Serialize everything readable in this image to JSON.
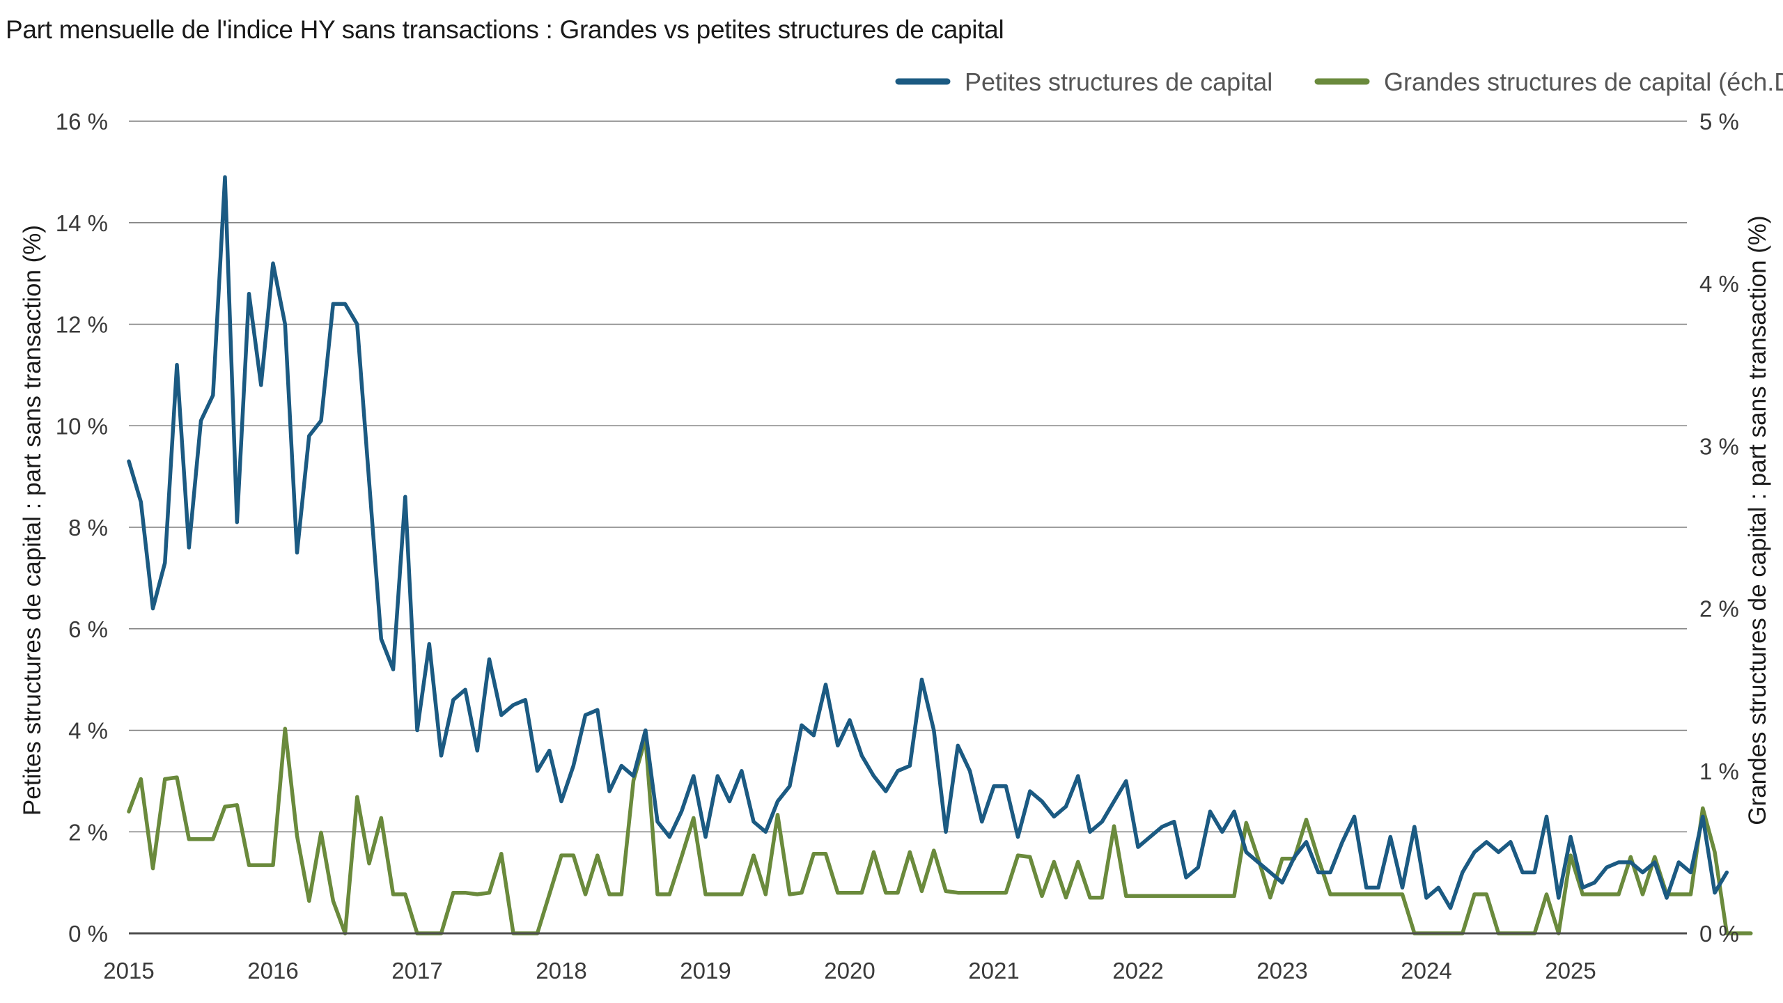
{
  "chart_data": {
    "type": "line",
    "title": "Part mensuelle de l'indice HY sans transactions : Grandes vs petites structures de capital",
    "ylabel_left": "Petites structures de capital : part sans transaction (%)",
    "ylabel_right": "Grandes structures de capital : part sans transaction (%)",
    "x_start": "2015-01",
    "x_ticks": [
      "2015",
      "2016",
      "2017",
      "2018",
      "2019",
      "2020",
      "2021",
      "2022",
      "2023",
      "2024",
      "2025"
    ],
    "ylim_left": [
      0,
      16
    ],
    "yticks_left": [
      "0 %",
      "2 %",
      "4 %",
      "6 %",
      "8 %",
      "10 %",
      "12 %",
      "14 %",
      "16 %"
    ],
    "ylim_right": [
      0,
      5
    ],
    "yticks_right": [
      "0 %",
      "1 %",
      "2 %",
      "3 %",
      "4 %",
      "5 %"
    ],
    "grid": true,
    "legend_position": "top-right",
    "colors": {
      "small": "#1b5a82",
      "large": "#6a8a3c",
      "grid": "#7f7f7f",
      "axis": "#4d4d4d"
    },
    "series": [
      {
        "name": "Petites structures de capital",
        "axis": "left",
        "values": [
          9.3,
          8.5,
          6.4,
          7.3,
          11.2,
          7.6,
          10.1,
          10.6,
          14.9,
          8.1,
          12.6,
          10.8,
          13.2,
          12.0,
          7.5,
          9.8,
          10.1,
          12.4,
          12.4,
          12.0,
          8.9,
          5.8,
          5.2,
          8.6,
          4.0,
          5.7,
          3.5,
          4.6,
          4.8,
          3.6,
          5.4,
          4.3,
          4.5,
          4.6,
          3.2,
          3.6,
          2.6,
          3.3,
          4.3,
          4.4,
          2.8,
          3.3,
          3.1,
          4.0,
          2.2,
          1.9,
          2.4,
          3.1,
          1.9,
          3.1,
          2.6,
          3.2,
          2.2,
          2.0,
          2.6,
          2.9,
          4.1,
          3.9,
          4.9,
          3.7,
          4.2,
          3.5,
          3.1,
          2.8,
          3.2,
          3.3,
          5.0,
          4.0,
          2.0,
          3.7,
          3.2,
          2.2,
          2.9,
          2.9,
          1.9,
          2.8,
          2.6,
          2.3,
          2.5,
          3.1,
          2.0,
          2.2,
          2.6,
          3.0,
          1.7,
          1.9,
          2.1,
          2.2,
          1.1,
          1.3,
          2.4,
          2.0,
          2.4,
          1.6,
          1.4,
          1.2,
          1.0,
          1.5,
          1.8,
          1.2,
          1.2,
          1.8,
          2.3,
          0.9,
          0.9,
          1.9,
          0.9,
          2.1,
          0.7,
          0.9,
          0.5,
          1.2,
          1.6,
          1.8,
          1.6,
          1.8,
          1.2,
          1.2,
          2.3,
          0.7,
          1.9,
          0.9,
          1.0,
          1.3,
          1.4,
          1.4,
          1.2,
          1.4,
          0.7,
          1.4,
          1.2,
          2.3,
          0.8,
          1.2
        ]
      },
      {
        "name": "Grandes structures de capital (éch.D)",
        "axis": "right",
        "values": [
          0.75,
          0.95,
          0.4,
          0.95,
          0.96,
          0.58,
          0.58,
          0.58,
          0.78,
          0.79,
          0.42,
          0.42,
          0.42,
          1.26,
          0.6,
          0.2,
          0.62,
          0.2,
          0.0,
          0.84,
          0.43,
          0.71,
          0.24,
          0.24,
          0.0,
          0.0,
          0.0,
          0.25,
          0.25,
          0.24,
          0.25,
          0.49,
          0.0,
          0.0,
          0.0,
          0.24,
          0.48,
          0.48,
          0.24,
          0.48,
          0.24,
          0.24,
          0.94,
          1.2,
          0.24,
          0.24,
          0.47,
          0.71,
          0.24,
          0.24,
          0.24,
          0.24,
          0.48,
          0.24,
          0.73,
          0.24,
          0.25,
          0.49,
          0.49,
          0.25,
          0.25,
          0.25,
          0.5,
          0.25,
          0.25,
          0.5,
          0.26,
          0.51,
          0.26,
          0.25,
          0.25,
          0.25,
          0.25,
          0.25,
          0.48,
          0.47,
          0.23,
          0.44,
          0.22,
          0.44,
          0.22,
          0.22,
          0.66,
          0.23,
          0.23,
          0.23,
          0.23,
          0.23,
          0.23,
          0.23,
          0.23,
          0.23,
          0.23,
          0.68,
          0.46,
          0.22,
          0.46,
          0.46,
          0.7,
          0.46,
          0.24,
          0.24,
          0.24,
          0.24,
          0.24,
          0.24,
          0.24,
          0.0,
          0.0,
          0.0,
          0.0,
          0.0,
          0.24,
          0.24,
          0.0,
          0.0,
          0.0,
          0.0,
          0.24,
          0.0,
          0.48,
          0.24,
          0.24,
          0.24,
          0.24,
          0.47,
          0.24,
          0.47,
          0.24,
          0.24,
          0.24,
          0.77,
          0.5,
          0.0,
          0.0,
          0.0
        ]
      }
    ]
  }
}
